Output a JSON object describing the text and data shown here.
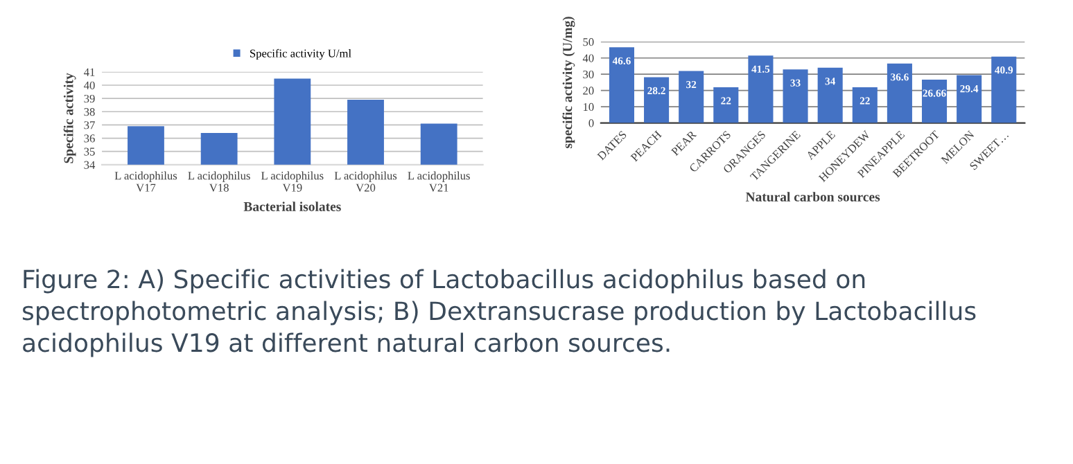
{
  "chart_data": [
    {
      "type": "bar",
      "xlabel": "Bacterial isolates",
      "ylabel": "Specific activity",
      "categories": [
        "L acidophilus V17",
        "L acidophilus V18",
        "L acidophilus V19",
        "L acidophilus V20",
        "L acidophilus V21"
      ],
      "series": [
        {
          "name": "Specific activity U/ml",
          "color": "#4472c4",
          "values": [
            36.9,
            36.4,
            40.5,
            38.9,
            37.1
          ]
        }
      ],
      "ylim": [
        34,
        41
      ],
      "yticks": [
        34,
        35,
        36,
        37,
        38,
        39,
        40,
        41
      ],
      "grid": "y",
      "legend": "top",
      "annotations": [
        "Figure 2: A) Specific activities of Lactobacillus acidophilus based on spectrophotometric analysis; B) Dextransucrase production by Lactobacillus acidophilus V19 at different natural carbon sources."
      ]
    },
    {
      "type": "bar",
      "xlabel": "Natural carbon sources",
      "ylabel": "specific activity (U/mg)",
      "categories": [
        "DATES",
        "PEACH",
        "PEAR",
        "CARROTS",
        "ORANGES",
        "TANGERINE",
        "APPLE",
        "HONEYDEW",
        "PINEAPPLE",
        "BEETROOT",
        "MELON",
        "SWEET…"
      ],
      "series": [
        {
          "color": "#4472c4",
          "values": [
            46.6,
            28.2,
            32,
            22,
            41.5,
            33,
            34,
            22,
            36.6,
            26.66,
            29.4,
            40.9
          ]
        }
      ],
      "ylim": [
        0,
        50
      ],
      "yticks": [
        0,
        10,
        20,
        30,
        40,
        50
      ],
      "grid": "y",
      "data_labels": true
    }
  ]
}
